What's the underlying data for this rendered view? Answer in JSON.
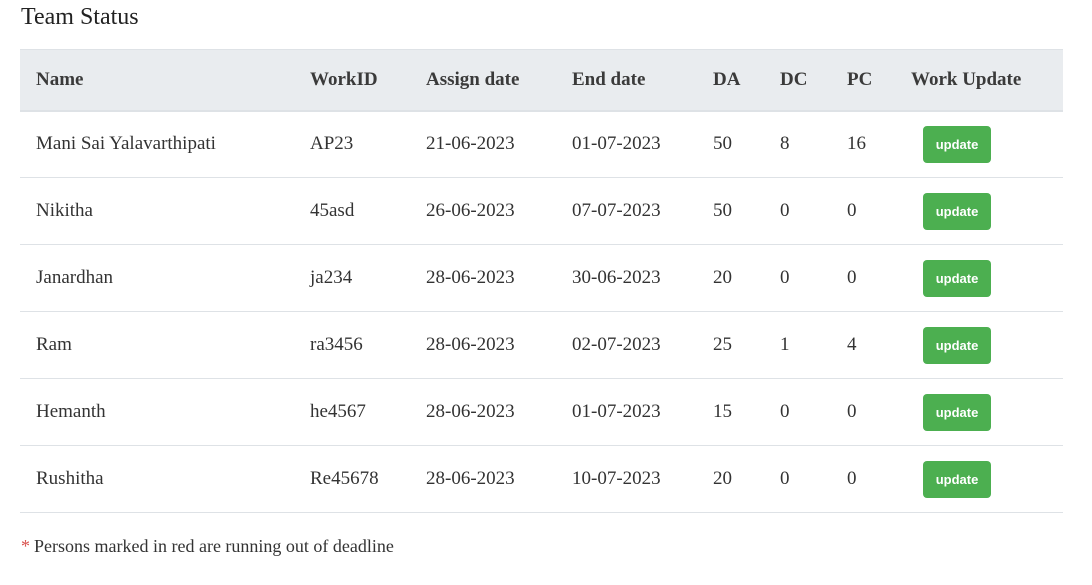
{
  "page": {
    "title": "Team Status"
  },
  "table": {
    "headers": {
      "name": "Name",
      "work_id": "WorkID",
      "assign_date": "Assign date",
      "end_date": "End date",
      "da": "DA",
      "dc": "DC",
      "pc": "PC",
      "work_update": "Work Update"
    },
    "rows": [
      {
        "name": "Mani Sai Yalavarthipati",
        "work_id": "AP23",
        "assign_date": "21-06-2023",
        "end_date": "01-07-2023",
        "da": "50",
        "dc": "8",
        "pc": "16",
        "button": "update"
      },
      {
        "name": "Nikitha",
        "work_id": "45asd",
        "assign_date": "26-06-2023",
        "end_date": "07-07-2023",
        "da": "50",
        "dc": "0",
        "pc": "0",
        "button": "update"
      },
      {
        "name": "Janardhan",
        "work_id": "ja234",
        "assign_date": "28-06-2023",
        "end_date": "30-06-2023",
        "da": "20",
        "dc": "0",
        "pc": "0",
        "button": "update"
      },
      {
        "name": "Ram",
        "work_id": "ra3456",
        "assign_date": "28-06-2023",
        "end_date": "02-07-2023",
        "da": "25",
        "dc": "1",
        "pc": "4",
        "button": "update"
      },
      {
        "name": "Hemanth",
        "work_id": "he4567",
        "assign_date": "28-06-2023",
        "end_date": "01-07-2023",
        "da": "15",
        "dc": "0",
        "pc": "0",
        "button": "update"
      },
      {
        "name": "Rushitha",
        "work_id": "Re45678",
        "assign_date": "28-06-2023",
        "end_date": "10-07-2023",
        "da": "20",
        "dc": "0",
        "pc": "0",
        "button": "update"
      }
    ]
  },
  "footnote": {
    "marker": "*",
    "text": "Persons marked in red are running out of deadline"
  },
  "colors": {
    "header_bg": "#e9ecef",
    "button_bg": "#4caf50",
    "asterisk": "#d9534f"
  }
}
